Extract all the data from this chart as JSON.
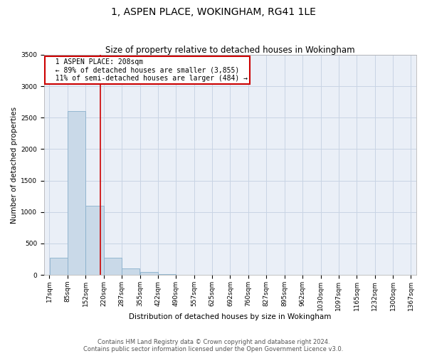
{
  "title": "1, ASPEN PLACE, WOKINGHAM, RG41 1LE",
  "subtitle": "Size of property relative to detached houses in Wokingham",
  "xlabel": "Distribution of detached houses by size in Wokingham",
  "ylabel": "Number of detached properties",
  "footer_line1": "Contains HM Land Registry data © Crown copyright and database right 2024.",
  "footer_line2": "Contains public sector information licensed under the Open Government Licence v3.0.",
  "annotation_line1": "1 ASPEN PLACE: 208sqm",
  "annotation_line2": "← 89% of detached houses are smaller (3,855)",
  "annotation_line3": "11% of semi-detached houses are larger (484) →",
  "bin_edges": [
    17,
    85,
    152,
    220,
    287,
    355,
    422,
    490,
    557,
    625,
    692,
    760,
    827,
    895,
    962,
    1030,
    1097,
    1165,
    1232,
    1300,
    1367
  ],
  "bar_heights": [
    270,
    2600,
    1100,
    270,
    100,
    50,
    10,
    0,
    0,
    0,
    0,
    0,
    0,
    0,
    0,
    0,
    0,
    0,
    0,
    0
  ],
  "bar_color": "#c9d9e8",
  "bar_edge_color": "#8ab0cc",
  "vline_color": "#cc0000",
  "vline_x": 208,
  "ylim": [
    0,
    3500
  ],
  "yticks": [
    0,
    500,
    1000,
    1500,
    2000,
    2500,
    3000,
    3500
  ],
  "grid_color": "#c8d4e4",
  "bg_color": "#eaeff7",
  "title_fontsize": 10,
  "subtitle_fontsize": 8.5,
  "axis_label_fontsize": 7.5,
  "tick_fontsize": 6.5,
  "annotation_fontsize": 7,
  "footer_fontsize": 6
}
